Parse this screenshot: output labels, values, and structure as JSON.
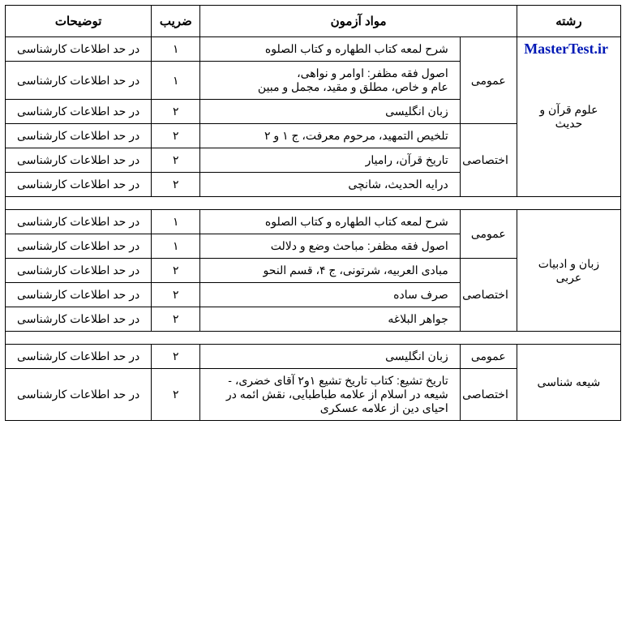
{
  "logo_text": "MasterTest.ir",
  "headers": {
    "field": "رشته",
    "subjects": "مواد آزمون",
    "coef": "ضریب",
    "notes": "توضیحات"
  },
  "note_default": "در حد اطلاعات کارشناسی",
  "cat_general": "عمومی",
  "cat_special": "اختصاصی",
  "colors": {
    "border": "#000000",
    "text": "#000000",
    "background": "#ffffff",
    "logo": "#0018b5"
  },
  "sections": [
    {
      "field": "علوم قرآن و حدیث",
      "general": [
        {
          "subject": "شرح لمعه کتاب الطهاره و کتاب الصلوه",
          "coef": "۱"
        },
        {
          "subject": "اصول فقه مظفر: اوامر و نواهی،\nعام و خاص، مطلق و مقید، مجمل و مبین",
          "coef": "۱"
        },
        {
          "subject": "زبان انگلیسی",
          "coef": "۲"
        }
      ],
      "special": [
        {
          "subject": "تلخیص التمهید، مرحوم معرفت، ج ۱ و ۲",
          "coef": "۲"
        },
        {
          "subject": "تاریخ قرآن، رامیار",
          "coef": "۲"
        },
        {
          "subject": "درایه الحدیث، شانچی",
          "coef": "۲"
        }
      ]
    },
    {
      "field": "زبان و ادبیات عربی",
      "general": [
        {
          "subject": "شرح لمعه کتاب الطهاره و کتاب الصلوه",
          "coef": "۱"
        },
        {
          "subject": "اصول فقه مظفر: مباحث وضع و دلالت",
          "coef": "۱"
        }
      ],
      "special": [
        {
          "subject": "مبادی العربیه، شرتونی، ج ۴، قسم النحو",
          "coef": "۲"
        },
        {
          "subject": "صرف ساده",
          "coef": "۲"
        },
        {
          "subject": "جواهر البلاغه",
          "coef": "۲"
        }
      ]
    },
    {
      "field": "شیعه شناسی",
      "general": [
        {
          "subject": "زبان انگلیسی",
          "coef": "۲"
        }
      ],
      "special": [
        {
          "subject": "تاریخ تشیع: کتاب تاریخ تشیع ۱و۲ آقای خضری،  - شیعه در اسلام از علامه طباطبایی، نقش ائمه در احیای دین از علامه عسکری",
          "coef": "۲"
        }
      ]
    }
  ]
}
